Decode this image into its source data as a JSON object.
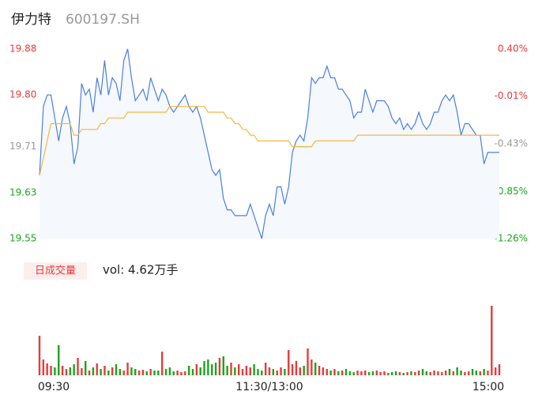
{
  "chart_data": [
    {
      "type": "line",
      "title": "伊力特",
      "subtitle": "600197.SH",
      "x": [
        0,
        2,
        4,
        6,
        8,
        10,
        12,
        14,
        16,
        18,
        20,
        22,
        24,
        26,
        28,
        30,
        32,
        34,
        36,
        38,
        40,
        42,
        44,
        46,
        48,
        50,
        52,
        54,
        56,
        58,
        60,
        62,
        64,
        66,
        68,
        70,
        72,
        74,
        76,
        78,
        80,
        82,
        84,
        86,
        88,
        90,
        92,
        94,
        96,
        98,
        100,
        102,
        104,
        106,
        108,
        110,
        112,
        114,
        116,
        118,
        120,
        122,
        124,
        126,
        128,
        130,
        132,
        134,
        136,
        138,
        140,
        142,
        144,
        146,
        148,
        150,
        152,
        154,
        156,
        158,
        160,
        162,
        164,
        166,
        168,
        170,
        172,
        174,
        176,
        178,
        180,
        182,
        184,
        186,
        188,
        190,
        192,
        194,
        196,
        198,
        200,
        202,
        204,
        206,
        208,
        210,
        212,
        214,
        216,
        218,
        220,
        222,
        224,
        226,
        228,
        230,
        232,
        234,
        236,
        238,
        240
      ],
      "xlim": [
        0,
        240
      ],
      "xticks": [
        {
          "value": 0,
          "label": "09:30"
        },
        {
          "value": 120,
          "label": "11:30/13:00"
        },
        {
          "value": 240,
          "label": "15:00"
        }
      ],
      "ylim": [
        19.55,
        19.88
      ],
      "yticks": [
        19.55,
        19.63,
        19.71,
        {
          "value": 19.8,
          "label": "19.80"
        },
        19.88
      ],
      "y2lim": [
        -1.26,
        0.4
      ],
      "y2ticks": [
        {
          "value": -1.26,
          "label": "-1.26%"
        },
        {
          "value": -0.85,
          "label": "-0.85%"
        },
        {
          "value": -0.43,
          "label": "-0.43%"
        },
        {
          "value": -0.01,
          "label": "-0.01%"
        },
        {
          "value": 0.4,
          "label": "0.40%"
        }
      ],
      "series": [
        {
          "color": "#4a7fe0",
          "fill": "#f5f8fd",
          "values": [
            19.66,
            19.78,
            19.8,
            19.8,
            19.76,
            19.72,
            19.76,
            19.78,
            19.75,
            19.68,
            19.71,
            19.82,
            19.8,
            19.81,
            19.77,
            19.83,
            19.8,
            19.86,
            19.8,
            19.83,
            19.82,
            19.79,
            19.86,
            19.88,
            19.83,
            19.79,
            19.8,
            19.81,
            19.79,
            19.83,
            19.81,
            19.79,
            19.81,
            19.8,
            19.78,
            19.77,
            19.78,
            19.79,
            19.8,
            19.78,
            19.77,
            19.78,
            19.76,
            19.73,
            19.7,
            19.67,
            19.66,
            19.67,
            19.62,
            19.6,
            19.6,
            19.59,
            19.59,
            19.59,
            19.59,
            19.61,
            19.59,
            19.57,
            19.55,
            19.59,
            19.61,
            19.59,
            19.64,
            19.64,
            19.61,
            19.64,
            19.7,
            19.72,
            19.73,
            19.72,
            19.76,
            19.83,
            19.82,
            19.83,
            19.83,
            19.85,
            19.83,
            19.83,
            19.81,
            19.81,
            19.8,
            19.79,
            19.76,
            19.77,
            19.77,
            19.81,
            19.79,
            19.77,
            19.79,
            19.79,
            19.79,
            19.78,
            19.76,
            19.75,
            19.76,
            19.74,
            19.75,
            19.74,
            19.75,
            19.77,
            19.75,
            19.74,
            19.75,
            19.77,
            19.77,
            19.79,
            19.8,
            19.79,
            19.8,
            19.77,
            19.73,
            19.75,
            19.75,
            19.74,
            19.73,
            19.73,
            19.68,
            19.7,
            19.7,
            19.7,
            19.7
          ]
        },
        {
          "color": "#f5b83d",
          "values": [
            19.66,
            19.69,
            19.72,
            19.75,
            19.75,
            19.75,
            19.75,
            19.75,
            19.75,
            19.73,
            19.73,
            19.74,
            19.74,
            19.74,
            19.74,
            19.74,
            19.75,
            19.75,
            19.76,
            19.76,
            19.76,
            19.76,
            19.76,
            19.77,
            19.77,
            19.77,
            19.77,
            19.77,
            19.77,
            19.77,
            19.77,
            19.77,
            19.77,
            19.77,
            19.78,
            19.78,
            19.78,
            19.78,
            19.78,
            19.78,
            19.78,
            19.78,
            19.78,
            19.78,
            19.77,
            19.77,
            19.77,
            19.77,
            19.77,
            19.76,
            19.76,
            19.75,
            19.75,
            19.74,
            19.74,
            19.73,
            19.73,
            19.72,
            19.72,
            19.72,
            19.72,
            19.72,
            19.72,
            19.72,
            19.72,
            19.72,
            19.71,
            19.71,
            19.71,
            19.71,
            19.71,
            19.71,
            19.72,
            19.72,
            19.72,
            19.72,
            19.72,
            19.72,
            19.72,
            19.72,
            19.72,
            19.72,
            19.72,
            19.73,
            19.73,
            19.73,
            19.73,
            19.73,
            19.73,
            19.73,
            19.73,
            19.73,
            19.73,
            19.73,
            19.73,
            19.73,
            19.73,
            19.73,
            19.73,
            19.73,
            19.73,
            19.73,
            19.73,
            19.73,
            19.73,
            19.73,
            19.73,
            19.73,
            19.73,
            19.73,
            19.73,
            19.73,
            19.73,
            19.73,
            19.73,
            19.73,
            19.73,
            19.73,
            19.73,
            19.73,
            19.73
          ]
        }
      ]
    },
    {
      "type": "bar",
      "label": "日成交量",
      "annotation": "vol: 4.62万手",
      "up_color": "#e83a3a",
      "down_color": "#1aa51a",
      "values": [
        50,
        20,
        15,
        12,
        10,
        38,
        12,
        8,
        10,
        14,
        22,
        9,
        18,
        6,
        10,
        15,
        8,
        12,
        6,
        10,
        14,
        8,
        6,
        16,
        10,
        8,
        6,
        7,
        5,
        8,
        6,
        6,
        30,
        8,
        10,
        5,
        6,
        4,
        5,
        12,
        8,
        14,
        10,
        18,
        20,
        14,
        16,
        22,
        24,
        12,
        16,
        10,
        14,
        8,
        12,
        10,
        14,
        8,
        6,
        16,
        10,
        8,
        6,
        10,
        8,
        32,
        14,
        18,
        10,
        12,
        34,
        20,
        16,
        12,
        10,
        8,
        6,
        8,
        5,
        6,
        8,
        5,
        4,
        6,
        5,
        6,
        4,
        5,
        6,
        4,
        5,
        3,
        4,
        5,
        4,
        3,
        4,
        5,
        4,
        6,
        8,
        5,
        4,
        6,
        5,
        4,
        6,
        8,
        5,
        10,
        6,
        4,
        5,
        8,
        6,
        5,
        8,
        6,
        88,
        10,
        14
      ]
    }
  ]
}
